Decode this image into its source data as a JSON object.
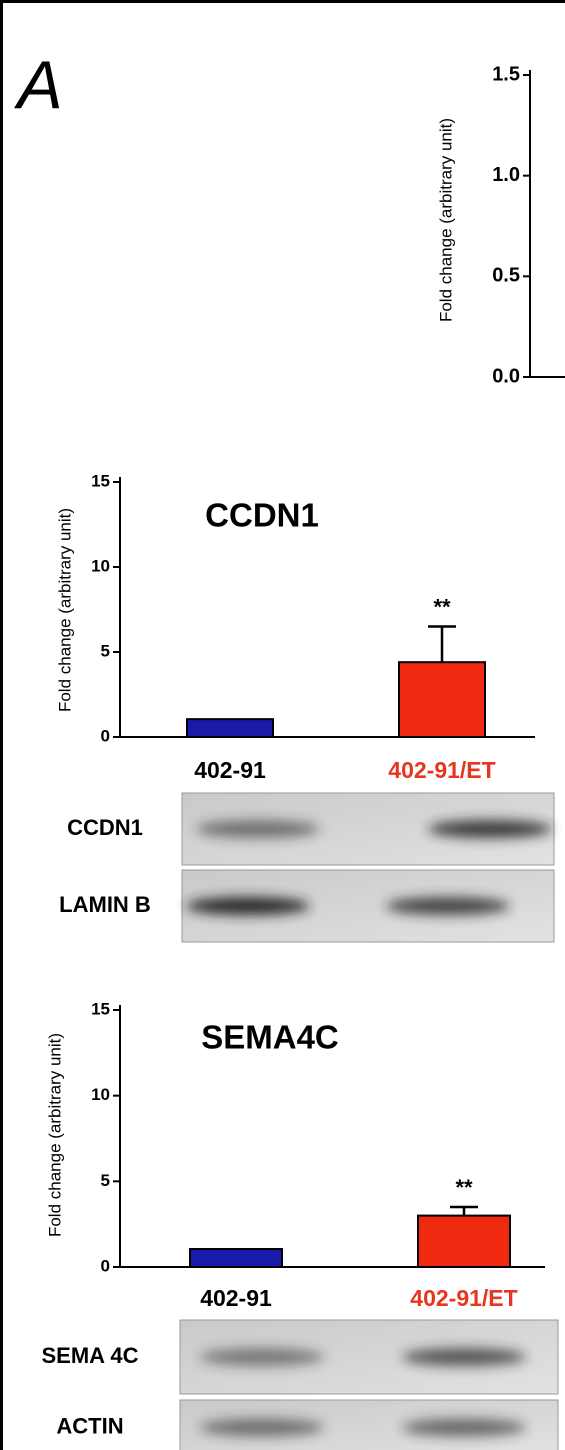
{
  "panel_label": "A",
  "chart_data": [
    {
      "type": "bar",
      "ylabel": "Fold change (arbitrary unit)",
      "ylim": [
        0,
        1.5
      ],
      "yticks": [
        {
          "value": 0,
          "label": "0.0"
        },
        0.5,
        {
          "value": 1,
          "label": "1.0"
        },
        1.5
      ]
    },
    {
      "type": "bar",
      "title": "CCDN1",
      "ylabel": "Fold change (arbitrary unit)",
      "categories": [
        "402-91",
        "402-91/ET"
      ],
      "category_label_colors": [
        "#000000",
        "#e8351f"
      ],
      "values": [
        1.05,
        4.4
      ],
      "errors": [
        0,
        2.1
      ],
      "colors": [
        "#1a1aa8",
        "#f02a10"
      ],
      "value_annotations": [
        null,
        "**"
      ],
      "ylim": [
        0,
        15
      ],
      "yticks": [
        0,
        5,
        10,
        15
      ],
      "blot_labels": [
        "CCDN1",
        "LAMIN B"
      ]
    },
    {
      "type": "bar",
      "title": "SEMA4C",
      "ylabel": "Fold change (arbitrary unit)",
      "categories": [
        "402-91",
        "402-91/ET"
      ],
      "category_label_colors": [
        "#000000",
        "#e8351f"
      ],
      "values": [
        1.05,
        3.0
      ],
      "errors": [
        0,
        0.5
      ],
      "colors": [
        "#1a1aa8",
        "#f02a10"
      ],
      "value_annotations": [
        null,
        "**"
      ],
      "ylim": [
        0,
        15
      ],
      "yticks": [
        0,
        5,
        10,
        15
      ],
      "blot_labels": [
        "SEMA 4C",
        "ACTIN"
      ]
    }
  ]
}
